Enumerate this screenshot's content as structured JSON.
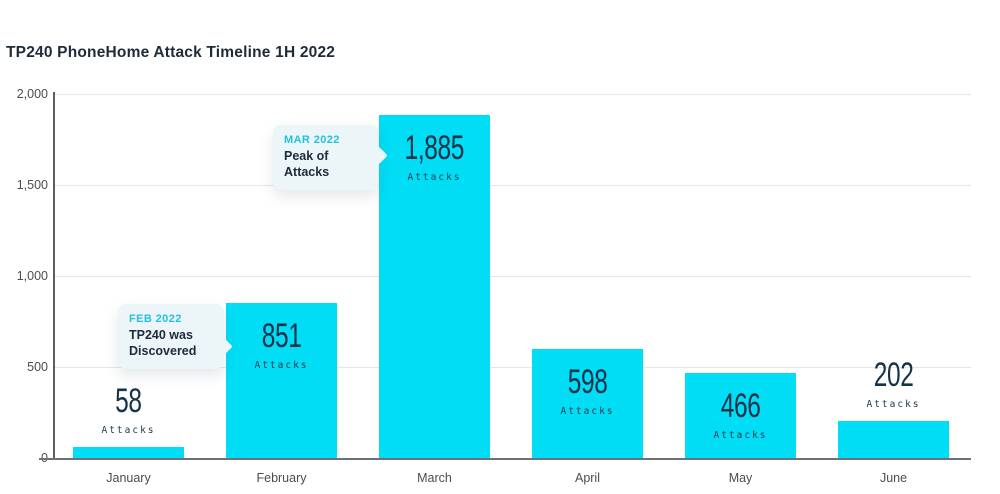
{
  "title": "TP240 PhoneHome Attack Timeline 1H 2022",
  "colors": {
    "bar": "#00ddf5",
    "value_text": "#14324a",
    "title_text": "#1d2b3a",
    "axis_text": "#4a4d50",
    "callout_bg": "#ecf5f8",
    "callout_accent": "#20c2e2",
    "gridline": "#e4e7e9"
  },
  "chart_data": {
    "type": "bar",
    "title": "TP240 PhoneHome Attack Timeline 1H 2022",
    "categories": [
      "January",
      "February",
      "March",
      "April",
      "May",
      "June"
    ],
    "values": [
      58,
      851,
      1885,
      598,
      466,
      202
    ],
    "value_labels": [
      "58",
      "851",
      "1,885",
      "598",
      "466",
      "202"
    ],
    "unit_label": "Attacks",
    "xlabel": "",
    "ylabel": "",
    "ylim": [
      0,
      2000
    ],
    "yticks": [
      {
        "value": 0,
        "label": "0"
      },
      {
        "value": 500,
        "label": "500"
      },
      {
        "value": 1000,
        "label": "1,000"
      },
      {
        "value": 1500,
        "label": "1,500"
      },
      {
        "value": 2000,
        "label": "2,000"
      }
    ],
    "grid": true,
    "legend": false
  },
  "annotations": [
    {
      "date_label": "FEB 2022",
      "line1": "TP240 was",
      "line2": "Discovered"
    },
    {
      "date_label": "MAR 2022",
      "line1": "Peak of",
      "line2": "Attacks"
    }
  ]
}
